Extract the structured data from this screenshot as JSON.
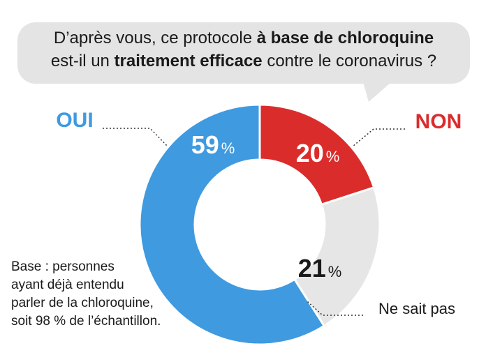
{
  "question": {
    "line1": {
      "before": "D’après vous, ce protocole ",
      "bold": "à base de chloroquine",
      "after": ""
    },
    "line2": {
      "before": "est-il un ",
      "bold": "traitement efficace",
      "after": " contre le coronavirus ?"
    }
  },
  "note": [
    "Base : personnes",
    "ayant déjà entendu",
    "parler de la chloroquine,",
    "soit 98 % de l’échantillon."
  ],
  "chart_data": {
    "type": "pie",
    "style": "donut",
    "title": "D’après vous, ce protocole à base de chloroquine est-il un traitement efficace contre le coronavirus ?",
    "categories": [
      "OUI",
      "NON",
      "Ne sait pas"
    ],
    "values": [
      59,
      20,
      21
    ],
    "unit": "%",
    "value_labels": [
      "59",
      "20",
      "21"
    ],
    "colors": [
      "#3f9ae0",
      "#db2c2c",
      "#e6e6e6"
    ],
    "label_colors": [
      "#3f9ae0",
      "#db2c2c",
      "#1a1a1a"
    ],
    "value_text_colors": [
      "#ffffff",
      "#ffffff",
      "#1a1a1a"
    ]
  }
}
